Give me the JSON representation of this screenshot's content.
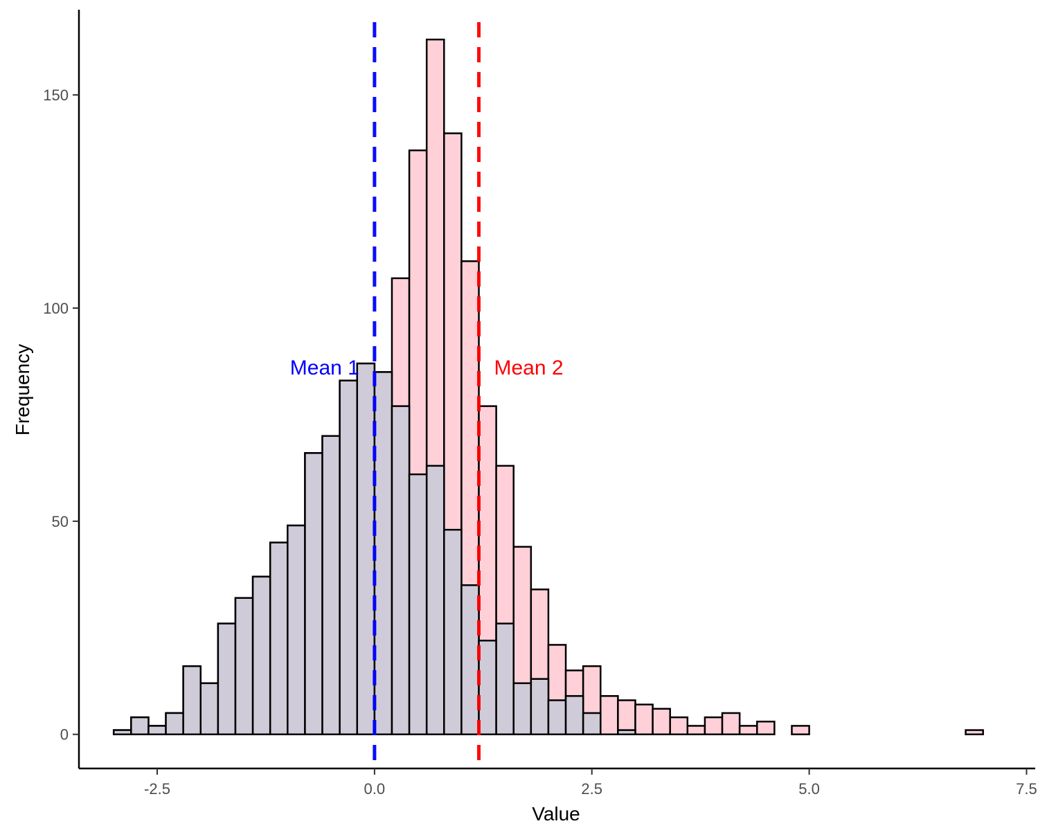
{
  "chart_data": {
    "type": "bar",
    "subtype": "overlaid-histogram",
    "title": "",
    "xlabel": "Value",
    "ylabel": "Frequency",
    "xlim": [
      -3.4,
      7.6
    ],
    "ylim": [
      -8,
      170
    ],
    "x_ticks": [
      -2.5,
      0.0,
      2.5,
      5.0,
      7.5
    ],
    "x_tick_labels": [
      "-2.5",
      "0.0",
      "2.5",
      "5.0",
      "7.5"
    ],
    "y_ticks": [
      0,
      50,
      100,
      150
    ],
    "y_tick_labels": [
      "0",
      "50",
      "100",
      "150"
    ],
    "bin_width": 0.2,
    "grid": false,
    "legend": "none",
    "series": [
      {
        "fill": "#ffd0d8",
        "bins": [
          [
            -2.9,
            1
          ],
          [
            -2.7,
            4
          ],
          [
            -2.5,
            2
          ],
          [
            -2.3,
            5
          ],
          [
            -2.1,
            16
          ],
          [
            -1.9,
            12
          ],
          [
            -1.7,
            26
          ],
          [
            -1.5,
            32
          ],
          [
            -1.3,
            37
          ],
          [
            -1.1,
            45
          ],
          [
            -0.9,
            49
          ],
          [
            -0.7,
            66
          ],
          [
            -0.5,
            70
          ],
          [
            -0.3,
            83
          ],
          [
            -0.1,
            87
          ],
          [
            0.1,
            85
          ],
          [
            0.3,
            107
          ],
          [
            0.5,
            137
          ],
          [
            0.7,
            163
          ],
          [
            0.9,
            141
          ],
          [
            1.1,
            111
          ],
          [
            1.3,
            77
          ],
          [
            1.5,
            63
          ],
          [
            1.7,
            44
          ],
          [
            1.9,
            34
          ],
          [
            2.1,
            21
          ],
          [
            2.3,
            15
          ],
          [
            2.5,
            16
          ],
          [
            2.7,
            9
          ],
          [
            2.9,
            8
          ],
          [
            3.1,
            7
          ],
          [
            3.3,
            6
          ],
          [
            3.5,
            4
          ],
          [
            3.7,
            2
          ],
          [
            3.9,
            4
          ],
          [
            4.1,
            5
          ],
          [
            4.3,
            2
          ],
          [
            4.5,
            3
          ],
          [
            4.9,
            2
          ],
          [
            6.9,
            1
          ]
        ]
      },
      {
        "fill": "#cfcbd8",
        "bins": [
          [
            -2.9,
            1
          ],
          [
            -2.7,
            4
          ],
          [
            -2.5,
            2
          ],
          [
            -2.3,
            5
          ],
          [
            -2.1,
            16
          ],
          [
            -1.9,
            12
          ],
          [
            -1.7,
            26
          ],
          [
            -1.5,
            32
          ],
          [
            -1.3,
            37
          ],
          [
            -1.1,
            45
          ],
          [
            -0.9,
            49
          ],
          [
            -0.7,
            66
          ],
          [
            -0.5,
            70
          ],
          [
            -0.3,
            83
          ],
          [
            -0.1,
            87
          ],
          [
            0.1,
            85
          ],
          [
            0.3,
            77
          ],
          [
            0.5,
            61
          ],
          [
            0.7,
            63
          ],
          [
            0.9,
            48
          ],
          [
            1.1,
            35
          ],
          [
            1.3,
            22
          ],
          [
            1.5,
            26
          ],
          [
            1.7,
            12
          ],
          [
            1.9,
            13
          ],
          [
            2.1,
            8
          ],
          [
            2.3,
            9
          ],
          [
            2.5,
            5
          ],
          [
            2.7,
            0
          ],
          [
            2.9,
            1
          ]
        ]
      }
    ],
    "mean_lines": [
      {
        "label": "Mean 1",
        "x": 0.0,
        "color": "#0000ff",
        "label_side": "left"
      },
      {
        "label": "Mean 2",
        "x": 1.2,
        "color": "#ff0000",
        "label_side": "right"
      }
    ],
    "mean_label_y": 86
  }
}
